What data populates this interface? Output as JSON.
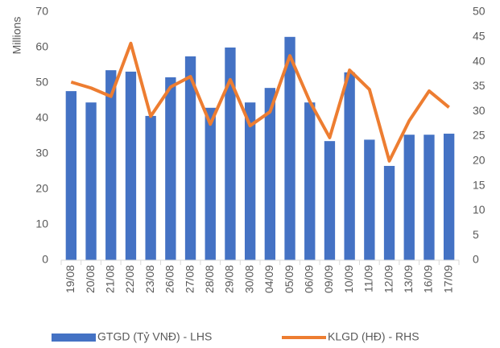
{
  "chart_data": {
    "type": "bar-line",
    "y_label": "Millions",
    "categories": [
      "19/08",
      "20/08",
      "21/08",
      "22/08",
      "23/08",
      "26/08",
      "27/08",
      "28/08",
      "29/08",
      "30/08",
      "04/09",
      "05/09",
      "06/09",
      "09/09",
      "10/09",
      "11/09",
      "12/09",
      "13/09",
      "16/09",
      "17/09"
    ],
    "series": [
      {
        "name": "GTGD (Tỷ VNĐ) - LHS",
        "color": "#4472c4",
        "type": "bar",
        "values": [
          47.7,
          44.5,
          53.6,
          53.2,
          40.7,
          51.6,
          57.5,
          43,
          60,
          44.5,
          48.6,
          63,
          44.5,
          33.6,
          53,
          34,
          26.6,
          35.4,
          35.4,
          35.7
        ]
      },
      {
        "name": "KLGD (HĐ) - RHS",
        "color": "#ed7d31",
        "type": "line",
        "axis": "y2",
        "values": [
          35.9,
          34.7,
          33,
          43.7,
          29,
          34.9,
          37,
          27.4,
          36.4,
          27.1,
          29.9,
          41.2,
          32,
          24.7,
          38.3,
          34.4,
          20,
          28.1,
          34.1,
          30.8
        ]
      }
    ],
    "ylim": [
      0,
      70
    ],
    "yticks": [
      0,
      10,
      20,
      30,
      40,
      50,
      60,
      70
    ],
    "y2lim": [
      0,
      50
    ],
    "y2ticks": [
      0,
      5,
      10,
      15,
      20,
      25,
      30,
      35,
      40,
      45,
      50
    ]
  }
}
